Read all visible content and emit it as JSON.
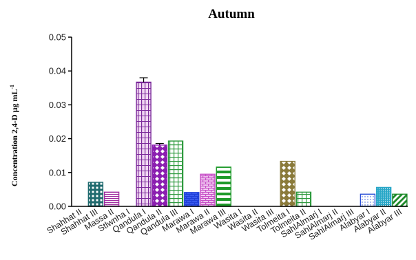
{
  "chart_data": {
    "type": "bar",
    "title": "Autumn",
    "xlabel": "",
    "ylabel": "Concentration 2,4-D μg mL",
    "ylabel_superscript": "-1",
    "ylim": [
      0,
      0.05
    ],
    "yticks": [
      "0.00",
      "0.01",
      "0.02",
      "0.03",
      "0.04",
      "0.05"
    ],
    "grid": false,
    "categories": [
      "Shahhat II",
      "Shahhat III",
      "Massa II",
      "Stlwnha I",
      "Qandula I",
      "Qandula II",
      "Qandula III",
      "Marawa I",
      "Marawa II",
      "Marawa III",
      "Wasita I",
      "Wasita II",
      "Wasita III",
      "Tolmeita I",
      "Tolmeita II",
      "SahlAlmarj I",
      "SahlAlmarj II",
      "SahlAlmarj III",
      "Alabyar I",
      "Alabyar II",
      "Alabyar III"
    ],
    "values": [
      0,
      0.0071,
      0.0042,
      0,
      0.0367,
      0.0181,
      0.0193,
      0.0041,
      0.0095,
      0.0116,
      0,
      0,
      0,
      0.0133,
      0.0042,
      0,
      0,
      0,
      0.0036,
      0.0056,
      0.0036
    ],
    "errors": [
      0,
      0,
      0,
      0,
      0.0013,
      0.0005,
      0,
      0,
      0,
      0,
      0,
      0,
      0,
      0,
      0,
      0,
      0,
      0,
      0,
      0,
      0
    ],
    "colors": [
      "#ffffff",
      "#1f6a6e",
      "#a02ca0",
      "#ffffff",
      "#7b2a9a",
      "#8b1fb0",
      "#2e9a3e",
      "#1f3fd8",
      "#c64fc6",
      "#1e9a2a",
      "#ffffff",
      "#ffffff",
      "#ffffff",
      "#8a7a3a",
      "#2e9a3e",
      "#ffffff",
      "#ffffff",
      "#ffffff",
      "#2a4fd8",
      "#2aa8c8",
      "#1e8a2a"
    ],
    "patterns": [
      "none",
      "grid-dark",
      "h-lines",
      "none",
      "brick-v",
      "diamond",
      "grid",
      "brick",
      "brick",
      "h-lines-thick",
      "none",
      "none",
      "none",
      "diamond",
      "grid",
      "none",
      "none",
      "none",
      "dots",
      "dots-dense",
      "diag"
    ]
  }
}
